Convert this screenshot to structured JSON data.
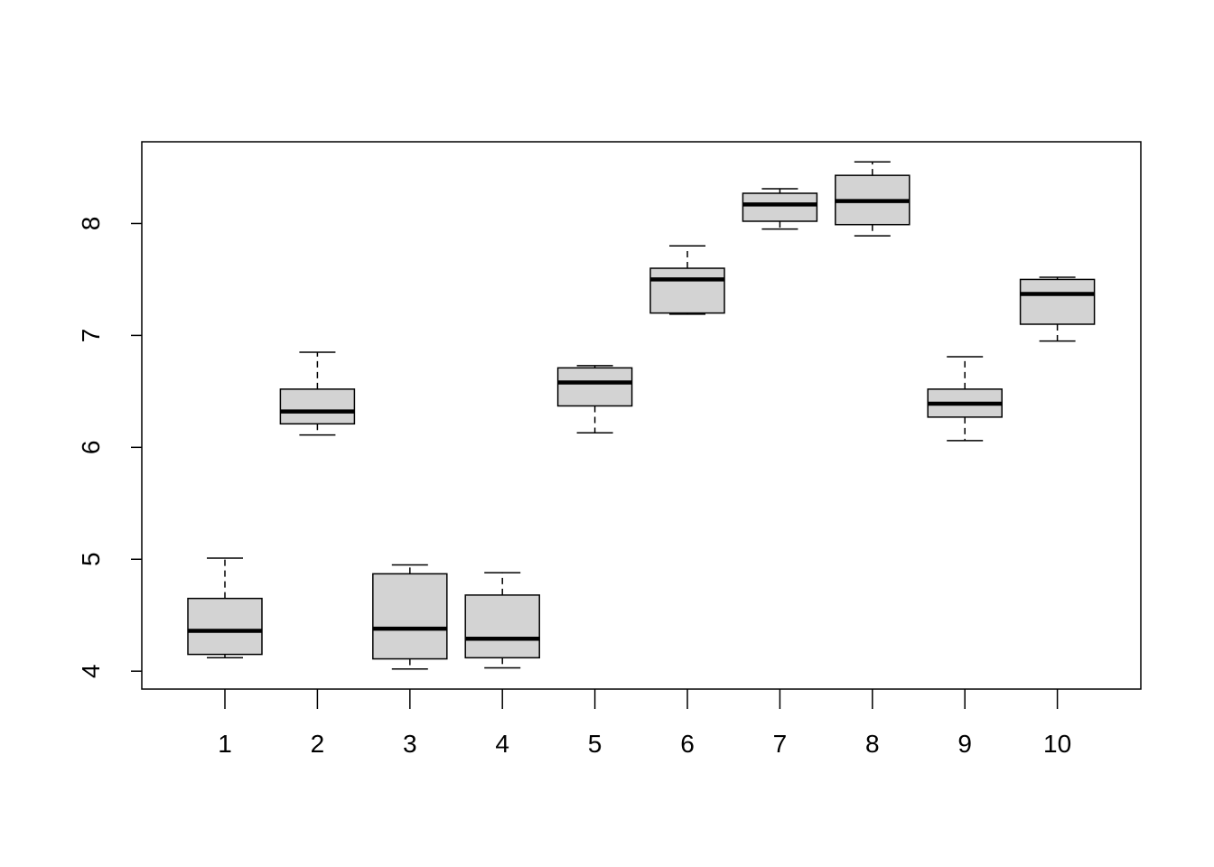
{
  "chart_data": {
    "type": "boxplot",
    "title": "",
    "xlabel": "",
    "ylabel": "",
    "categories": [
      "1",
      "2",
      "3",
      "4",
      "5",
      "6",
      "7",
      "8",
      "9",
      "10"
    ],
    "boxes": [
      {
        "category": "1",
        "min": 4.12,
        "q1": 4.15,
        "median": 4.36,
        "q3": 4.65,
        "max": 5.01
      },
      {
        "category": "2",
        "min": 6.11,
        "q1": 6.21,
        "median": 6.32,
        "q3": 6.52,
        "max": 6.85
      },
      {
        "category": "3",
        "min": 4.02,
        "q1": 4.11,
        "median": 4.38,
        "q3": 4.87,
        "max": 4.95
      },
      {
        "category": "4",
        "min": 4.03,
        "q1": 4.12,
        "median": 4.29,
        "q3": 4.68,
        "max": 4.88
      },
      {
        "category": "5",
        "min": 6.13,
        "q1": 6.37,
        "median": 6.58,
        "q3": 6.71,
        "max": 6.73
      },
      {
        "category": "6",
        "min": 7.19,
        "q1": 7.2,
        "median": 7.5,
        "q3": 7.6,
        "max": 7.8
      },
      {
        "category": "7",
        "min": 7.95,
        "q1": 8.02,
        "median": 8.17,
        "q3": 8.27,
        "max": 8.31
      },
      {
        "category": "8",
        "min": 7.89,
        "q1": 7.99,
        "median": 8.2,
        "q3": 8.43,
        "max": 8.55
      },
      {
        "category": "9",
        "min": 6.06,
        "q1": 6.27,
        "median": 6.39,
        "q3": 6.52,
        "max": 6.81
      },
      {
        "category": "10",
        "min": 6.95,
        "q1": 7.1,
        "median": 7.37,
        "q3": 7.5,
        "max": 7.52
      }
    ],
    "y_ticks": [
      "4",
      "5",
      "6",
      "7",
      "8"
    ],
    "ylim": [
      3.84,
      8.73
    ],
    "grid": false,
    "legend": "none"
  }
}
